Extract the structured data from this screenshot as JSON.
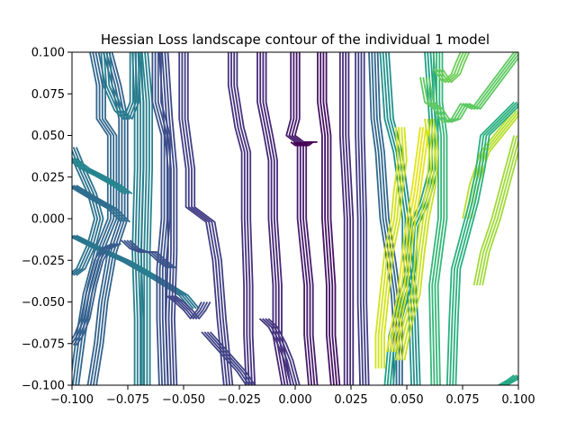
{
  "chart_data": {
    "type": "contour",
    "title": "Hessian Loss landscape contour of the individual 1 model",
    "xlabel": "",
    "ylabel": "",
    "xlim": [
      -0.1,
      0.1
    ],
    "ylim": [
      -0.1,
      0.1
    ],
    "x_ticks": [
      -0.1,
      -0.075,
      -0.05,
      -0.025,
      0.0,
      0.025,
      0.05,
      0.075,
      0.1
    ],
    "y_ticks": [
      -0.1,
      -0.075,
      -0.05,
      -0.025,
      0.0,
      0.025,
      0.05,
      0.075,
      0.1
    ],
    "x_tick_labels": [
      "−0.100",
      "−0.075",
      "−0.050",
      "−0.025",
      "0.000",
      "0.025",
      "0.050",
      "0.075",
      "0.100"
    ],
    "y_tick_labels": [
      "−0.100",
      "−0.075",
      "−0.050",
      "−0.025",
      "0.000",
      "0.025",
      "0.050",
      "0.075",
      "0.100"
    ],
    "colormap": "viridis",
    "contour_lines": [
      {
        "level": 0.15,
        "color": "#2c728e",
        "points": [
          [
            -0.1,
            0.043
          ],
          [
            -0.096,
            0.03
          ],
          [
            -0.091,
            0.015
          ],
          [
            -0.088,
            0.0
          ],
          [
            -0.091,
            -0.015
          ],
          [
            -0.096,
            -0.03
          ],
          [
            -0.1,
            -0.034
          ]
        ]
      },
      {
        "level": 0.12,
        "color": "#31688e",
        "points": [
          [
            -0.09,
            0.1
          ],
          [
            -0.087,
            0.08
          ],
          [
            -0.087,
            0.06
          ],
          [
            -0.082,
            0.05
          ],
          [
            -0.082,
            0.0
          ],
          [
            -0.088,
            -0.02
          ],
          [
            -0.093,
            -0.045
          ],
          [
            -0.096,
            -0.07
          ],
          [
            -0.099,
            -0.1
          ]
        ]
      },
      {
        "level": 0.1,
        "color": "#33638d",
        "points": [
          [
            -0.084,
            0.1
          ],
          [
            -0.08,
            0.08
          ],
          [
            -0.077,
            0.06
          ],
          [
            -0.077,
            0.0
          ],
          [
            -0.082,
            -0.02
          ],
          [
            -0.086,
            -0.05
          ],
          [
            -0.088,
            -0.075
          ],
          [
            -0.091,
            -0.1
          ]
        ]
      },
      {
        "level": 0.13,
        "color": "#2e6d8e",
        "points": [
          [
            -0.1,
            0.02
          ],
          [
            -0.09,
            0.012
          ],
          [
            -0.082,
            0.006
          ],
          [
            -0.076,
            -0.002
          ]
        ]
      },
      {
        "level": 0.14,
        "color": "#2a768e",
        "points": [
          [
            -0.1,
            -0.01
          ],
          [
            -0.088,
            -0.018
          ],
          [
            -0.075,
            -0.026
          ],
          [
            -0.062,
            -0.036
          ],
          [
            -0.05,
            -0.046
          ],
          [
            -0.045,
            -0.054
          ]
        ]
      },
      {
        "level": 0.18,
        "color": "#26828e",
        "points": [
          [
            -0.068,
            0.1
          ],
          [
            -0.066,
            0.07
          ],
          [
            -0.066,
            0.03
          ],
          [
            -0.067,
            -0.02
          ],
          [
            -0.067,
            -0.06
          ],
          [
            -0.067,
            -0.1
          ]
        ]
      },
      {
        "level": 0.17,
        "color": "#277f8e",
        "points": [
          [
            -0.071,
            0.1
          ],
          [
            -0.07,
            0.07
          ],
          [
            -0.07,
            0.03
          ],
          [
            -0.071,
            -0.02
          ],
          [
            -0.07,
            -0.06
          ],
          [
            -0.07,
            -0.1
          ]
        ]
      },
      {
        "level": 0.09,
        "color": "#3b528b",
        "points": [
          [
            -0.062,
            0.1
          ],
          [
            -0.062,
            0.07
          ],
          [
            -0.058,
            0.05
          ],
          [
            -0.058,
            0.0
          ],
          [
            -0.06,
            -0.03
          ],
          [
            -0.06,
            -0.06
          ],
          [
            -0.059,
            -0.1
          ]
        ]
      },
      {
        "level": 0.08,
        "color": "#3e4989",
        "points": [
          [
            -0.059,
            0.1
          ],
          [
            -0.057,
            0.06
          ],
          [
            -0.055,
            0.03
          ],
          [
            -0.055,
            -0.02
          ],
          [
            -0.056,
            -0.06
          ],
          [
            -0.055,
            -0.1
          ]
        ]
      },
      {
        "level": 0.07,
        "color": "#433e85",
        "points": [
          [
            -0.05,
            0.1
          ],
          [
            -0.05,
            0.06
          ],
          [
            -0.047,
            0.03
          ],
          [
            -0.047,
            0.007
          ],
          [
            -0.038,
            -0.002
          ],
          [
            -0.035,
            -0.025
          ],
          [
            -0.033,
            -0.06
          ],
          [
            -0.03,
            -0.1
          ]
        ]
      },
      {
        "level": 0.06,
        "color": "#46327e",
        "points": [
          [
            -0.028,
            0.1
          ],
          [
            -0.028,
            0.08
          ],
          [
            -0.025,
            0.055
          ],
          [
            -0.022,
            0.04
          ],
          [
            -0.022,
            0.0
          ],
          [
            -0.021,
            -0.04
          ],
          [
            -0.021,
            -0.07
          ],
          [
            -0.02,
            -0.1
          ]
        ]
      },
      {
        "level": 0.05,
        "color": "#482878",
        "points": [
          [
            -0.015,
            0.1
          ],
          [
            -0.015,
            0.07
          ],
          [
            -0.012,
            0.05
          ],
          [
            -0.01,
            0.035
          ],
          [
            -0.01,
            0.0
          ],
          [
            -0.008,
            -0.04
          ],
          [
            -0.008,
            -0.07
          ],
          [
            -0.004,
            -0.1
          ]
        ]
      },
      {
        "level": 0.04,
        "color": "#481c6e",
        "points": [
          [
            0.0,
            0.1
          ],
          [
            0.0,
            0.06
          ],
          [
            -0.002,
            0.05
          ],
          [
            0.003,
            0.045
          ],
          [
            0.003,
            0.0
          ],
          [
            0.006,
            -0.04
          ],
          [
            0.006,
            -0.07
          ],
          [
            0.008,
            -0.1
          ]
        ]
      },
      {
        "level": 0.03,
        "color": "#471365",
        "points": [
          [
            0.012,
            0.1
          ],
          [
            0.012,
            0.07
          ],
          [
            0.014,
            0.05
          ],
          [
            0.014,
            0.0
          ],
          [
            0.016,
            -0.04
          ],
          [
            0.016,
            -0.07
          ],
          [
            0.018,
            -0.1
          ]
        ]
      },
      {
        "level": 0.05,
        "color": "#472d7b",
        "points": [
          [
            0.022,
            0.1
          ],
          [
            0.022,
            0.05
          ],
          [
            0.024,
            0.0
          ],
          [
            0.024,
            -0.05
          ],
          [
            0.024,
            -0.1
          ]
        ]
      },
      {
        "level": 0.06,
        "color": "#433e85",
        "points": [
          [
            0.029,
            0.1
          ],
          [
            0.029,
            0.05
          ],
          [
            0.03,
            0.0
          ],
          [
            0.03,
            -0.05
          ],
          [
            0.031,
            -0.1
          ]
        ]
      },
      {
        "level": 0.12,
        "color": "#31688e",
        "points": [
          [
            0.035,
            0.1
          ],
          [
            0.036,
            0.06
          ],
          [
            0.038,
            0.04
          ],
          [
            0.04,
            0.0
          ],
          [
            0.043,
            -0.025
          ],
          [
            0.045,
            -0.045
          ],
          [
            0.046,
            -0.065
          ],
          [
            0.046,
            -0.1
          ]
        ]
      },
      {
        "level": 0.18,
        "color": "#21918c",
        "points": [
          [
            0.04,
            0.1
          ],
          [
            0.042,
            0.06
          ],
          [
            0.046,
            0.04
          ],
          [
            0.048,
            0.02
          ],
          [
            0.05,
            0.0
          ],
          [
            0.05,
            -0.02
          ],
          [
            0.052,
            -0.04
          ],
          [
            0.053,
            -0.06
          ],
          [
            0.054,
            -0.1
          ]
        ]
      },
      {
        "level": 0.22,
        "color": "#1fa187",
        "points": [
          [
            0.06,
            0.1
          ],
          [
            0.062,
            0.06
          ],
          [
            0.062,
            0.03
          ],
          [
            0.058,
            0.01
          ],
          [
            0.053,
            -0.005
          ],
          [
            0.052,
            -0.03
          ],
          [
            0.048,
            -0.05
          ],
          [
            0.044,
            -0.07
          ],
          [
            0.042,
            -0.1
          ]
        ]
      },
      {
        "level": 0.26,
        "color": "#35b779",
        "points": [
          [
            0.064,
            0.1
          ],
          [
            0.064,
            0.07
          ],
          [
            0.066,
            0.05
          ],
          [
            0.066,
            0.0
          ],
          [
            0.064,
            -0.02
          ],
          [
            0.062,
            -0.04
          ],
          [
            0.063,
            -0.1
          ]
        ]
      },
      {
        "level": 0.3,
        "color": "#6ece58",
        "points": [
          [
            0.064,
            0.09
          ],
          [
            0.068,
            0.082
          ],
          [
            0.072,
            0.087
          ],
          [
            0.074,
            0.094
          ],
          [
            0.076,
            0.1
          ]
        ]
      },
      {
        "level": 0.28,
        "color": "#5ec962",
        "points": [
          [
            0.058,
            0.085
          ],
          [
            0.06,
            0.07
          ],
          [
            0.064,
            0.066
          ],
          [
            0.068,
            0.058
          ],
          [
            0.072,
            0.06
          ],
          [
            0.076,
            0.069
          ],
          [
            0.081,
            0.066
          ],
          [
            0.086,
            0.075
          ],
          [
            0.1,
            0.1
          ]
        ]
      },
      {
        "level": 0.34,
        "color": "#b5de2b",
        "points": [
          [
            0.077,
            0.0
          ],
          [
            0.08,
            0.02
          ],
          [
            0.085,
            0.04
          ],
          [
            0.1,
            0.065
          ]
        ]
      },
      {
        "level": 0.32,
        "color": "#a0da39",
        "points": [
          [
            0.082,
            -0.04
          ],
          [
            0.085,
            -0.02
          ],
          [
            0.09,
            0.0
          ],
          [
            0.094,
            0.02
          ],
          [
            0.1,
            0.05
          ]
        ]
      },
      {
        "level": 0.38,
        "color": "#d2e21b",
        "points": [
          [
            0.047,
            0.055
          ],
          [
            0.048,
            0.035
          ],
          [
            0.046,
            0.015
          ],
          [
            0.045,
            0.0
          ],
          [
            0.042,
            -0.02
          ],
          [
            0.04,
            -0.045
          ],
          [
            0.038,
            -0.07
          ],
          [
            0.038,
            -0.09
          ]
        ]
      },
      {
        "level": 0.4,
        "color": "#e5e419",
        "points": [
          [
            0.058,
            0.055
          ],
          [
            0.056,
            0.035
          ],
          [
            0.054,
            0.015
          ],
          [
            0.052,
            0.0
          ],
          [
            0.05,
            -0.02
          ],
          [
            0.048,
            -0.045
          ],
          [
            0.045,
            -0.065
          ],
          [
            0.043,
            -0.08
          ]
        ]
      },
      {
        "level": 0.36,
        "color": "#c8e020",
        "points": [
          [
            0.06,
            0.06
          ],
          [
            0.062,
            0.04
          ],
          [
            0.061,
            0.02
          ],
          [
            0.058,
            0.0
          ],
          [
            0.056,
            -0.02
          ],
          [
            0.054,
            -0.045
          ],
          [
            0.05,
            -0.065
          ],
          [
            0.047,
            -0.085
          ]
        ]
      },
      {
        "level": 0.24,
        "color": "#2ab07f",
        "points": [
          [
            0.07,
            -0.1
          ],
          [
            0.071,
            -0.06
          ],
          [
            0.072,
            -0.03
          ],
          [
            0.076,
            -0.01
          ],
          [
            0.08,
            0.01
          ],
          [
            0.083,
            0.03
          ],
          [
            0.085,
            0.05
          ],
          [
            0.1,
            0.07
          ]
        ]
      },
      {
        "level": 0.2,
        "color": "#22a884",
        "points": [
          [
            0.093,
            -0.1
          ],
          [
            0.097,
            -0.097
          ],
          [
            0.1,
            -0.094
          ]
        ]
      },
      {
        "level": 0.19,
        "color": "#25858e",
        "points": [
          [
            -0.1,
            0.036
          ],
          [
            -0.094,
            0.03
          ],
          [
            -0.088,
            0.026
          ],
          [
            -0.08,
            0.02
          ],
          [
            -0.075,
            0.015
          ]
        ]
      },
      {
        "level": 0.16,
        "color": "#287c8e",
        "points": [
          [
            -0.085,
            0.1
          ],
          [
            -0.084,
            0.08
          ],
          [
            -0.079,
            0.065
          ],
          [
            -0.075,
            0.06
          ],
          [
            -0.072,
            0.07
          ],
          [
            -0.072,
            0.1
          ]
        ]
      },
      {
        "level": 0.11,
        "color": "#365d8d",
        "points": [
          [
            -0.1,
            -0.076
          ],
          [
            -0.097,
            -0.07
          ],
          [
            -0.094,
            -0.06
          ],
          [
            -0.091,
            -0.04
          ],
          [
            -0.088,
            -0.025
          ],
          [
            -0.085,
            -0.018
          ],
          [
            -0.08,
            -0.015
          ]
        ]
      },
      {
        "level": 0.1,
        "color": "#3b528b",
        "points": [
          [
            -0.076,
            -0.013
          ],
          [
            -0.072,
            -0.018
          ],
          [
            -0.068,
            -0.02
          ],
          [
            -0.064,
            -0.02
          ],
          [
            -0.06,
            -0.025
          ],
          [
            -0.055,
            -0.03
          ]
        ]
      },
      {
        "level": 0.09,
        "color": "#404588",
        "points": [
          [
            -0.056,
            -0.046
          ],
          [
            -0.052,
            -0.05
          ],
          [
            -0.048,
            -0.055
          ],
          [
            -0.045,
            -0.06
          ],
          [
            -0.042,
            -0.055
          ],
          [
            -0.04,
            -0.05
          ]
        ]
      },
      {
        "level": 0.08,
        "color": "#414487",
        "points": [
          [
            -0.04,
            -0.068
          ],
          [
            -0.036,
            -0.074
          ],
          [
            -0.032,
            -0.08
          ],
          [
            -0.028,
            -0.086
          ],
          [
            -0.024,
            -0.092
          ],
          [
            -0.02,
            -0.1
          ]
        ]
      },
      {
        "level": 0.07,
        "color": "#453781",
        "points": [
          [
            -0.014,
            -0.06
          ],
          [
            -0.01,
            -0.065
          ],
          [
            -0.006,
            -0.075
          ],
          [
            -0.003,
            -0.085
          ],
          [
            0.0,
            -0.1
          ]
        ]
      },
      {
        "level": 0.03,
        "color": "#440154",
        "points": [
          [
            0.0,
            0.046
          ],
          [
            0.002,
            0.044
          ],
          [
            0.004,
            0.044
          ],
          [
            0.006,
            0.046
          ],
          [
            0.008,
            0.046
          ]
        ]
      }
    ]
  }
}
